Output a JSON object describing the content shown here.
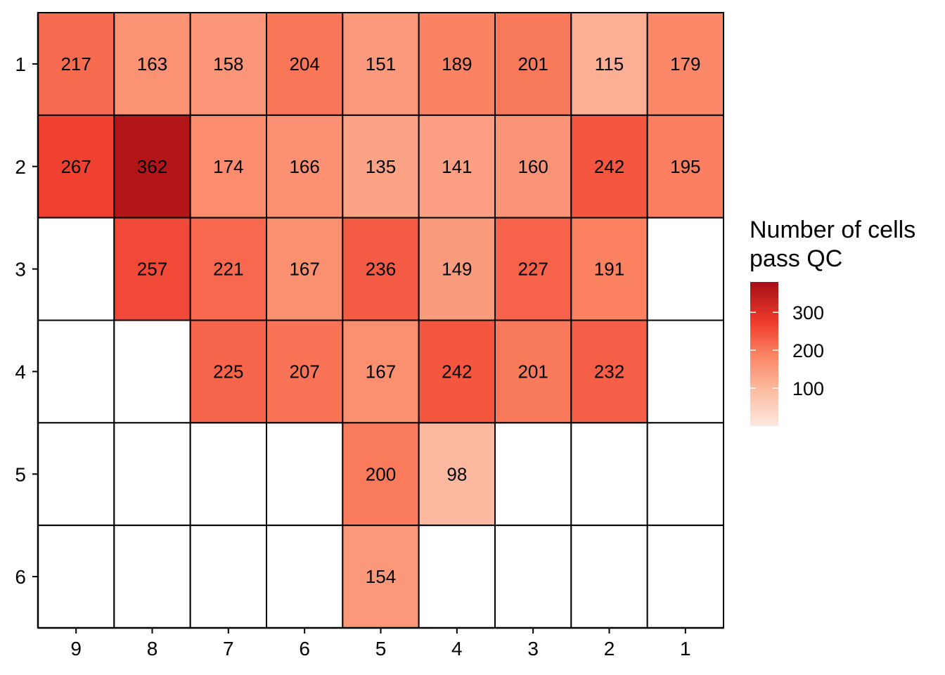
{
  "chart_data": {
    "type": "heatmap",
    "x_categories": [
      "9",
      "8",
      "7",
      "6",
      "5",
      "4",
      "3",
      "2",
      "1"
    ],
    "y_categories": [
      "1",
      "2",
      "3",
      "4",
      "5",
      "6"
    ],
    "values": [
      [
        217,
        163,
        158,
        204,
        151,
        189,
        201,
        115,
        179
      ],
      [
        267,
        362,
        174,
        166,
        135,
        141,
        160,
        242,
        195
      ],
      [
        null,
        257,
        221,
        167,
        236,
        149,
        227,
        191,
        null
      ],
      [
        null,
        null,
        225,
        207,
        167,
        242,
        201,
        232,
        null
      ],
      [
        null,
        null,
        null,
        null,
        200,
        98,
        null,
        null,
        null
      ],
      [
        null,
        null,
        null,
        null,
        154,
        null,
        null,
        null,
        null
      ]
    ],
    "legend": {
      "title_lines": [
        "Number of cells",
        "pass QC"
      ],
      "ticks": [
        100,
        200,
        300
      ],
      "range": [
        0,
        380
      ],
      "placement": "right"
    },
    "colors": {
      "low": "#fee0d2",
      "mid_low": "#fc9272",
      "mid": "#fb6a4a",
      "mid_high": "#ef3b2c",
      "high": "#a50f15",
      "na": "#ffffff",
      "grid": "#000000"
    },
    "xlabel": "",
    "ylabel": "",
    "grid": false
  }
}
